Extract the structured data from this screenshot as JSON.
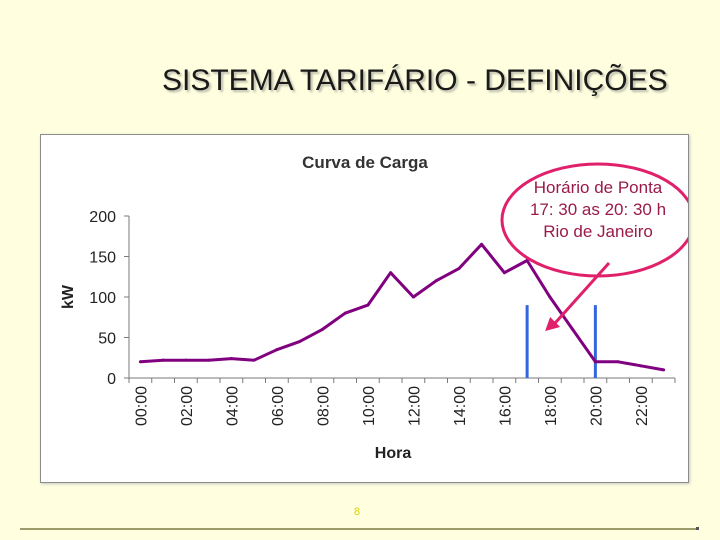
{
  "slide": {
    "title": "SISTEMA TARIFÁRIO - DEFINIÇÕES",
    "page_number": "8"
  },
  "chart_data": {
    "type": "line",
    "title": "Curva de Carga",
    "xlabel": "Hora",
    "ylabel": "kW",
    "ylim": [
      0,
      200
    ],
    "yticks": [
      "0",
      "50",
      "100",
      "150",
      "200"
    ],
    "categories": [
      "00:00",
      "01:00",
      "02:00",
      "03:00",
      "04:00",
      "05:00",
      "06:00",
      "07:00",
      "08:00",
      "09:00",
      "10:00",
      "11:00",
      "12:00",
      "13:00",
      "14:00",
      "15:00",
      "16:00",
      "17:00",
      "18:00",
      "19:00",
      "20:00",
      "21:00",
      "22:00",
      "23:00"
    ],
    "xtick_labels": [
      "00:00",
      "02:00",
      "04:00",
      "06:00",
      "08:00",
      "10:00",
      "12:00",
      "14:00",
      "16:00",
      "18:00",
      "20:00",
      "22:00"
    ],
    "series": [
      {
        "values": [
          20,
          22,
          22,
          22,
          24,
          22,
          35,
          45,
          60,
          80,
          90,
          130,
          100,
          120,
          135,
          165,
          130,
          145,
          100,
          60,
          20,
          20,
          15,
          10
        ]
      }
    ],
    "grid": false,
    "line_color": "#800080",
    "peak_marker_color": "#3366dd",
    "peak_start": "17:30",
    "peak_end": "20:30",
    "annotation": {
      "lines": [
        "Horário de Ponta",
        "17: 30 as 20: 30 h",
        "Rio de Janeiro"
      ],
      "border_color": "#e0206a",
      "text_color": "#9a1a4a"
    }
  }
}
